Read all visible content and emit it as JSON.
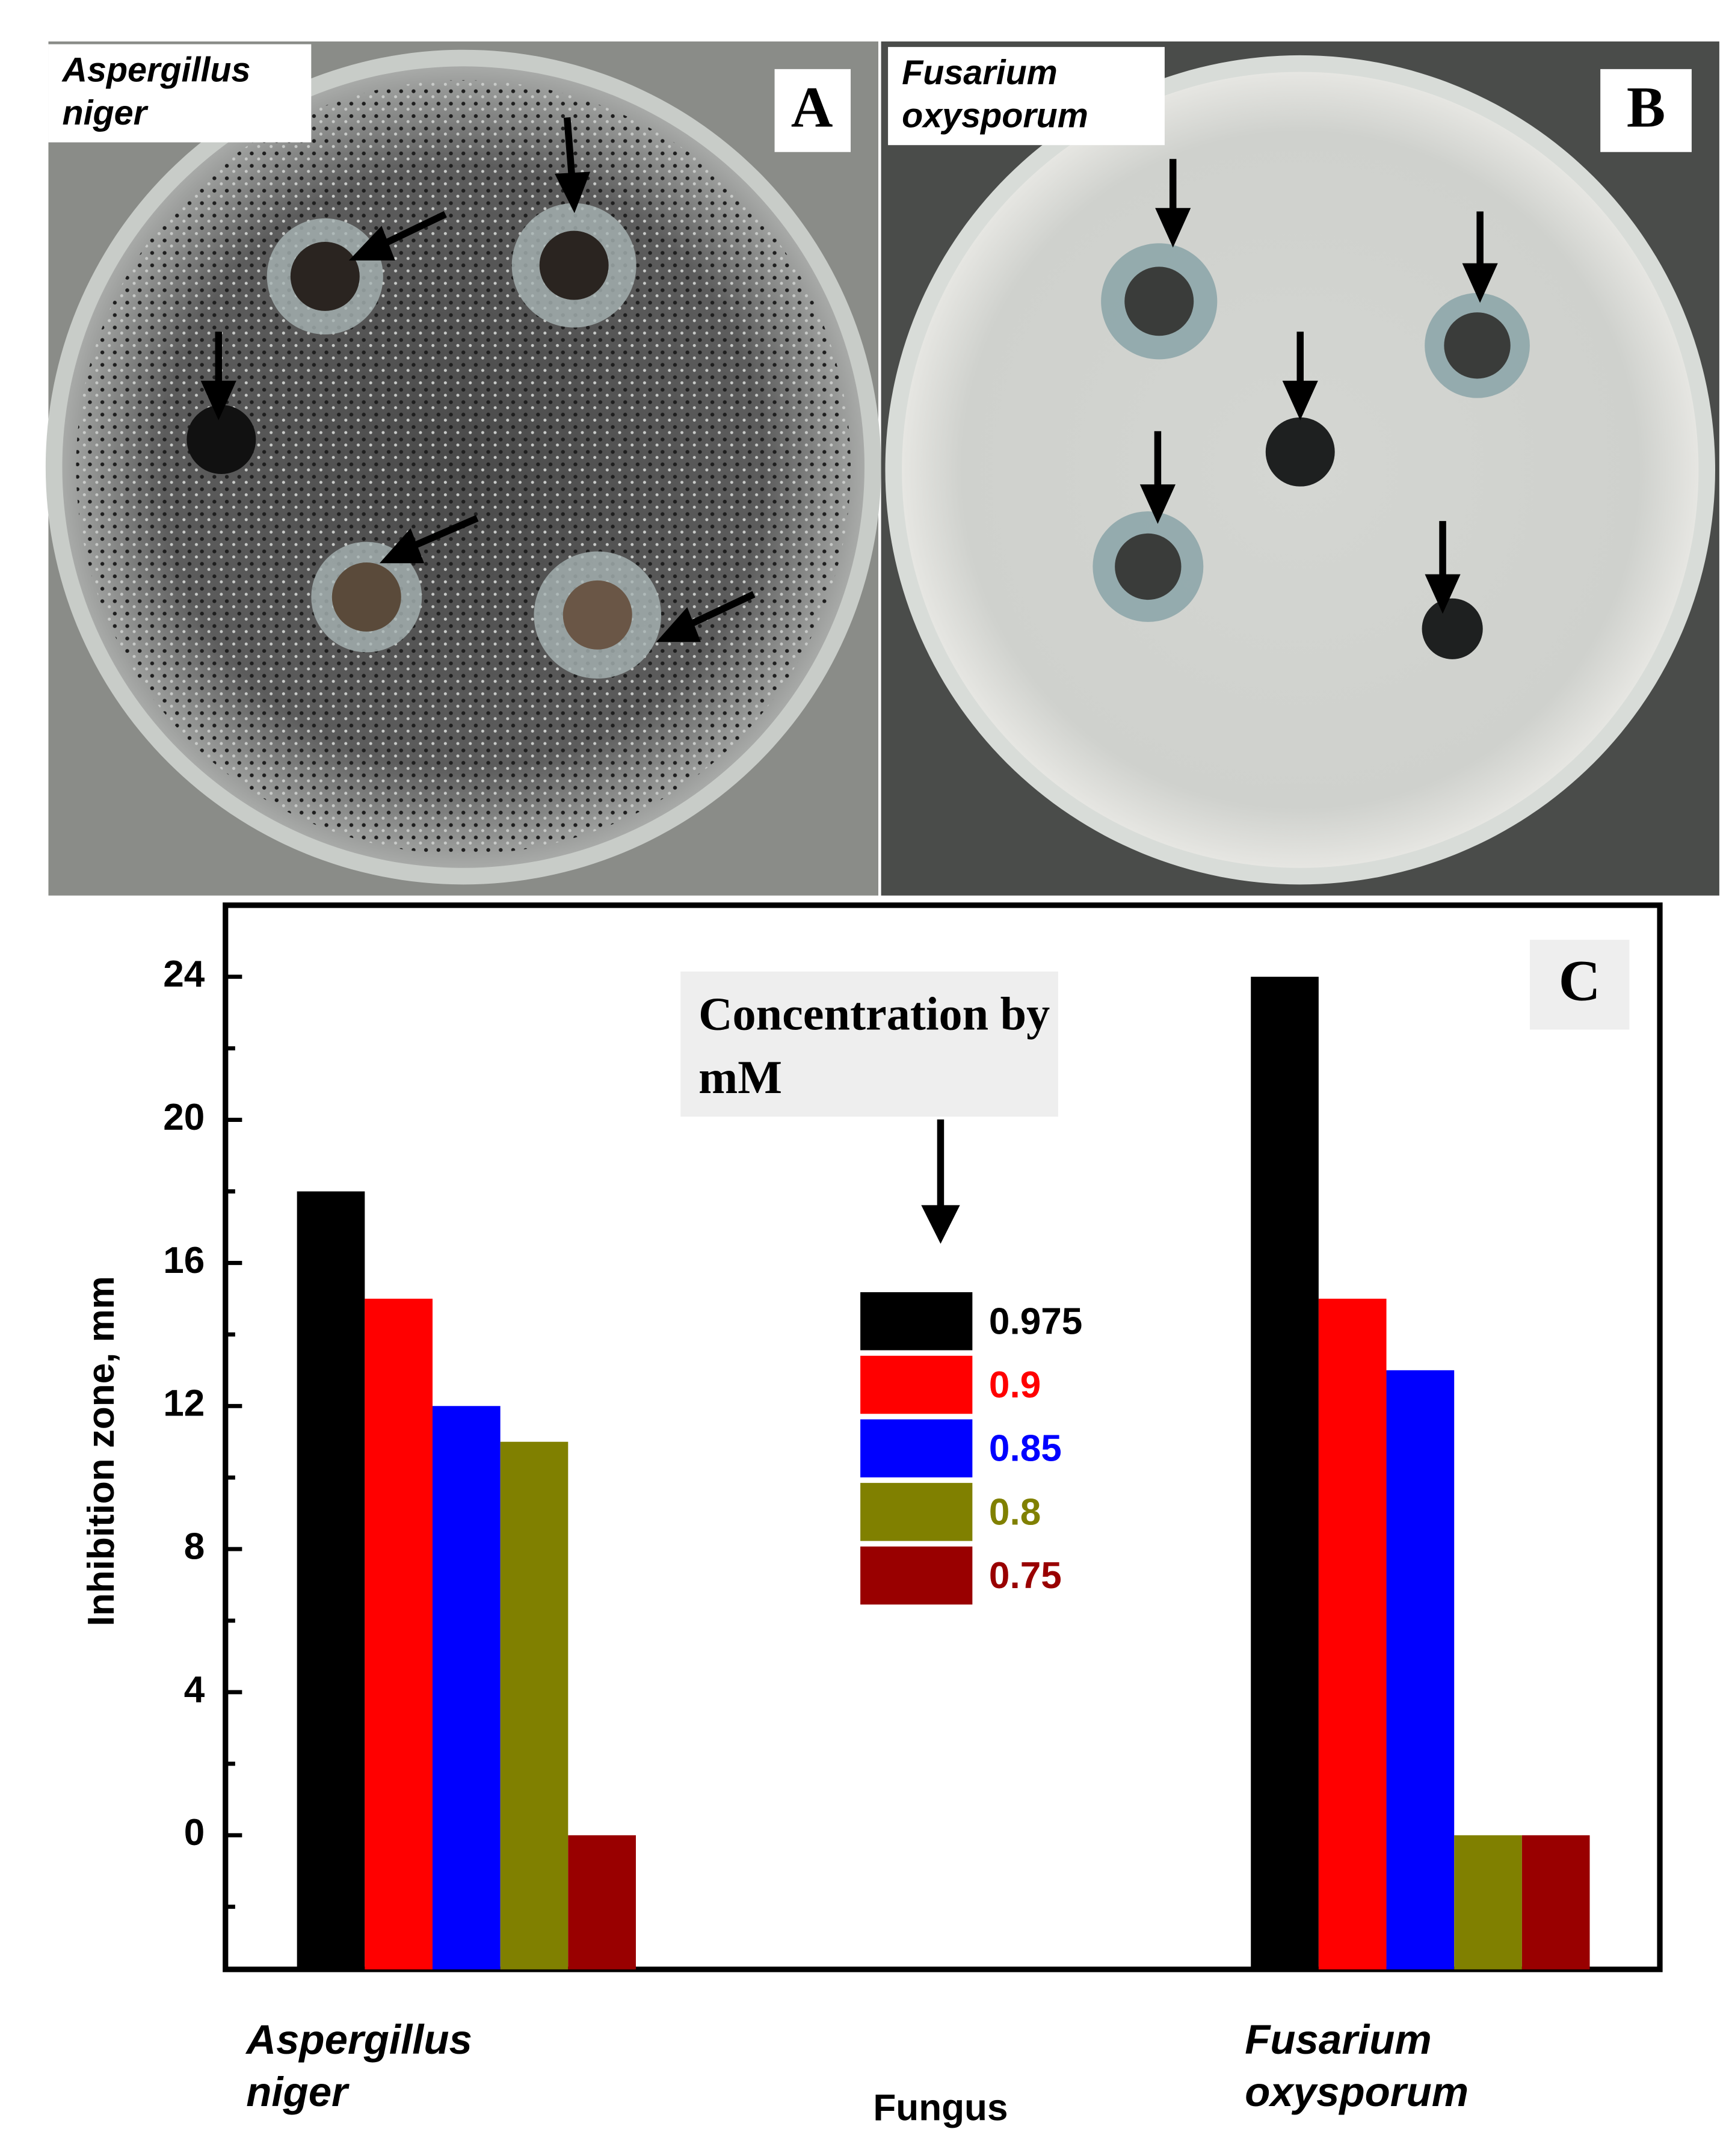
{
  "panels": {
    "a": {
      "label": "A",
      "organism": "Aspergillus niger"
    },
    "b": {
      "label": "B",
      "organism": "Fusarium oxysporum"
    }
  },
  "chart_data": {
    "type": "bar",
    "panel_label": "C",
    "annotation": "Concentration by mM",
    "xlabel": "Fungus",
    "ylabel": "Inhibition zone, mm",
    "categories": [
      "Aspergillus niger",
      "Fusarium oxysporum"
    ],
    "series": [
      {
        "name": "0.975",
        "color": "#000000",
        "values": [
          18,
          24
        ]
      },
      {
        "name": "0.9",
        "color": "#ff0000",
        "values": [
          15,
          15
        ]
      },
      {
        "name": "0.85",
        "color": "#0000ff",
        "values": [
          12,
          13
        ]
      },
      {
        "name": "0.8",
        "color": "#808000",
        "values": [
          11,
          0
        ]
      },
      {
        "name": "0.75",
        "color": "#990000",
        "values": [
          0,
          0
        ]
      }
    ],
    "ylim": [
      -3.75,
      26
    ],
    "yticks": [
      0,
      4,
      8,
      12,
      16,
      20,
      24
    ]
  }
}
